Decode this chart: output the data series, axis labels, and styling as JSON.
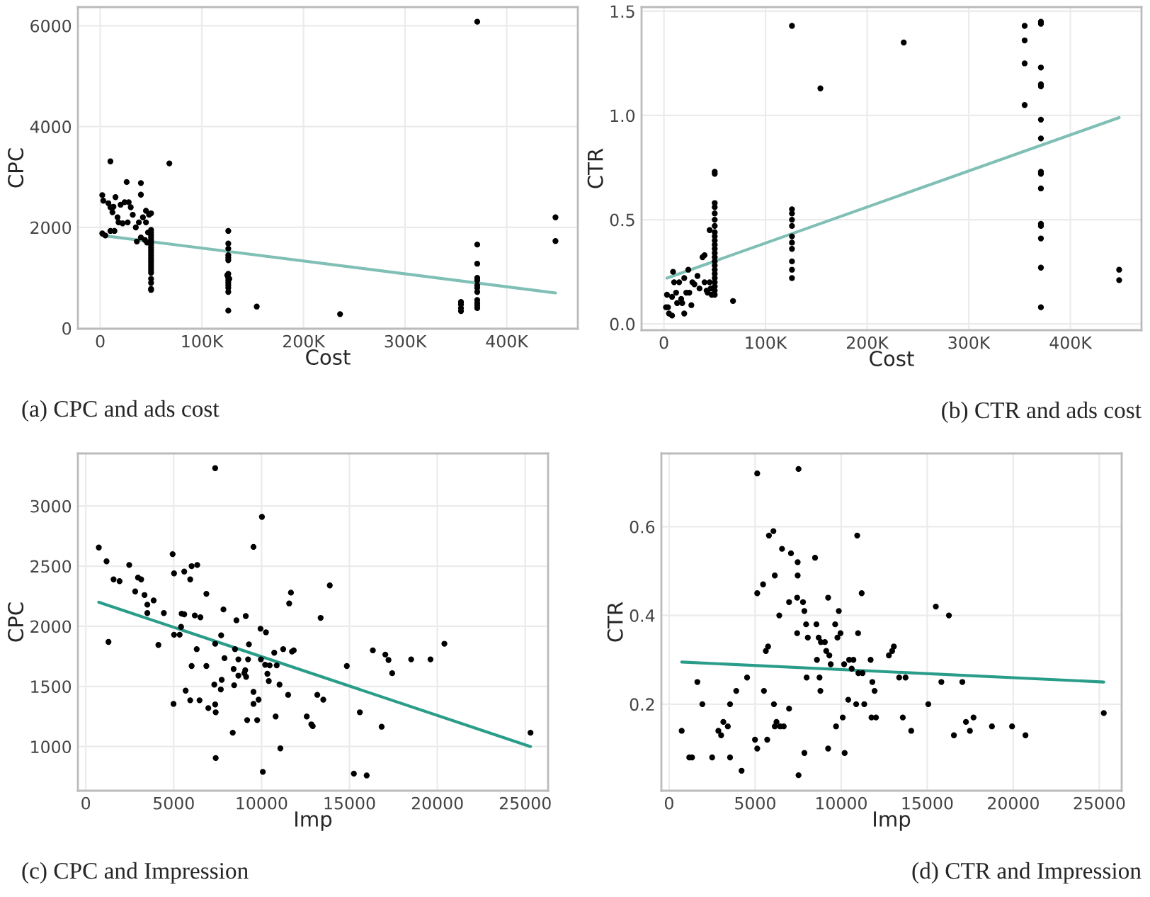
{
  "chart_data": [
    {
      "type": "scatter",
      "xlabel": "Cost",
      "ylabel": "CPC",
      "annotations": [
        "(a) CPC and ads cost"
      ],
      "grid": true,
      "xlim": [
        -22000,
        470000
      ],
      "ylim": [
        -10,
        6370
      ],
      "xticks": [
        0,
        {
          "value": 100000,
          "label": "100K"
        },
        {
          "value": 200000,
          "label": "200K"
        },
        {
          "value": 300000,
          "label": "300K"
        },
        {
          "value": 400000,
          "label": "400K"
        }
      ],
      "yticks": [
        0,
        2000,
        4000,
        6000
      ],
      "series": [
        {
          "type": "scatter",
          "marker": "circle",
          "color": "#000000",
          "x": [
            2000,
            3000,
            2000,
            5000,
            8000,
            10000,
            10000,
            12000,
            13000,
            15000,
            17000,
            18000,
            20000,
            22000,
            24000,
            26000,
            27000,
            28000,
            30000,
            32000,
            35000,
            38000,
            40000,
            40000,
            42000,
            45000,
            45000,
            47000,
            48000,
            50000,
            10000,
            14000,
            36000,
            40000,
            44000,
            46000,
            50000,
            50000,
            50000,
            50000,
            50000,
            50000,
            50000,
            50000,
            50000,
            50000,
            50000,
            50000,
            50000,
            50000,
            50000,
            50000,
            50000,
            50000,
            50000,
            50000,
            50000,
            50000,
            68000,
            126000,
            126000,
            126000,
            126000,
            126000,
            126000,
            126000,
            126000,
            126000,
            126000,
            126000,
            126000,
            126000,
            126000,
            127000,
            125000,
            154000,
            236000,
            355000,
            355000,
            355000,
            355000,
            371000,
            371000,
            371000,
            371000,
            371000,
            371000,
            371000,
            371000,
            371000,
            371000,
            371000,
            371000,
            448000,
            448000
          ],
          "values": [
            2640,
            2530,
            1880,
            1840,
            2480,
            3310,
            2400,
            2300,
            2410,
            2600,
            2200,
            2100,
            2450,
            2080,
            2500,
            2900,
            2100,
            2500,
            2400,
            2250,
            2000,
            2100,
            2880,
            2650,
            2200,
            2100,
            2330,
            1900,
            2250,
            2280,
            1930,
            1930,
            1720,
            1800,
            1750,
            1700,
            1950,
            1900,
            1850,
            1800,
            1750,
            1700,
            1650,
            1600,
            1550,
            1500,
            1450,
            1400,
            1350,
            1300,
            1250,
            1200,
            1150,
            1100,
            980,
            900,
            780,
            760,
            3270,
            1930,
            1680,
            1580,
            1450,
            1400,
            1350,
            1080,
            1000,
            950,
            900,
            850,
            800,
            720,
            350,
            980,
            1050,
            430,
            280,
            520,
            470,
            400,
            340,
            6080,
            1660,
            1280,
            1000,
            950,
            850,
            800,
            720,
            560,
            500,
            450,
            400,
            2200,
            1730
          ]
        },
        {
          "type": "line",
          "color": "#7fbfb5",
          "x": [
            2000,
            448000
          ],
          "values": [
            1840,
            700
          ]
        }
      ]
    },
    {
      "type": "scatter",
      "xlabel": "Cost",
      "ylabel": "CTR",
      "annotations": [
        "(b) CTR and ads cost"
      ],
      "grid": true,
      "xlim": [
        -22000,
        470000
      ],
      "ylim": [
        -0.03,
        1.52
      ],
      "xticks": [
        0,
        {
          "value": 100000,
          "label": "100K"
        },
        {
          "value": 200000,
          "label": "200K"
        },
        {
          "value": 300000,
          "label": "300K"
        },
        {
          "value": 400000,
          "label": "400K"
        }
      ],
      "yticks": [
        {
          "value": 0,
          "label": "0.0"
        },
        0.5,
        {
          "value": 1,
          "label": "1.0"
        },
        1.5
      ],
      "series": [
        {
          "type": "scatter",
          "marker": "circle",
          "color": "#000000",
          "x": [
            2000,
            3000,
            4000,
            5000,
            8000,
            8000,
            9000,
            10000,
            12000,
            13000,
            15000,
            17000,
            18000,
            20000,
            20000,
            22000,
            24000,
            25000,
            27000,
            28000,
            30000,
            33000,
            35000,
            38000,
            40000,
            40000,
            42000,
            43000,
            45000,
            45000,
            46000,
            47000,
            50000,
            50000,
            50000,
            50000,
            50000,
            50000,
            50000,
            50000,
            50000,
            50000,
            50000,
            50000,
            50000,
            50000,
            50000,
            50000,
            50000,
            50000,
            50000,
            50000,
            50000,
            50000,
            50000,
            68000,
            126000,
            126000,
            126000,
            126000,
            126000,
            126000,
            126000,
            126000,
            126000,
            126000,
            126000,
            154000,
            236000,
            355000,
            355000,
            355000,
            355000,
            371000,
            371000,
            371000,
            371000,
            371000,
            371000,
            371000,
            371000,
            371000,
            371000,
            371000,
            371000,
            371000,
            371000,
            371000,
            448000,
            448000
          ],
          "values": [
            0.08,
            0.14,
            0.08,
            0.05,
            0.04,
            0.13,
            0.25,
            0.2,
            0.15,
            0.1,
            0.2,
            0.12,
            0.1,
            0.05,
            0.22,
            0.15,
            0.26,
            0.15,
            0.09,
            0.2,
            0.19,
            0.23,
            0.17,
            0.32,
            0.33,
            0.2,
            0.16,
            0.15,
            0.45,
            0.2,
            0.17,
            0.14,
            0.73,
            0.72,
            0.58,
            0.56,
            0.53,
            0.5,
            0.47,
            0.44,
            0.42,
            0.4,
            0.38,
            0.36,
            0.34,
            0.32,
            0.3,
            0.28,
            0.26,
            0.24,
            0.22,
            0.2,
            0.18,
            0.16,
            0.14,
            0.11,
            1.43,
            0.55,
            0.53,
            0.5,
            0.47,
            0.42,
            0.39,
            0.36,
            0.3,
            0.26,
            0.22,
            1.13,
            1.35,
            1.43,
            1.36,
            1.25,
            1.05,
            1.45,
            1.44,
            1.23,
            1.15,
            1.14,
            0.98,
            0.89,
            0.73,
            0.72,
            0.65,
            0.48,
            0.47,
            0.41,
            0.27,
            0.08,
            0.26,
            0.21
          ]
        },
        {
          "type": "line",
          "color": "#7fbfb5",
          "x": [
            3000,
            448000
          ],
          "values": [
            0.22,
            0.99
          ]
        }
      ]
    },
    {
      "type": "scatter",
      "xlabel": "Imp",
      "ylabel": "CPC",
      "annotations": [
        "(c) CPC and Impression"
      ],
      "grid": true,
      "xlim": [
        -450,
        26300
      ],
      "ylim": [
        633,
        3437
      ],
      "xticks": [
        0,
        5000,
        10000,
        15000,
        20000,
        25000
      ],
      "yticks": [
        1000,
        1500,
        2000,
        2500,
        3000
      ],
      "series": [
        {
          "type": "scatter",
          "marker": "circle",
          "color": "#000000",
          "x": [
            740,
            1180,
            1290,
            1580,
            1920,
            2470,
            2810,
            2970,
            3150,
            3340,
            3500,
            3500,
            3860,
            4130,
            4440,
            4940,
            5020,
            5020,
            4990,
            5340,
            5420,
            5450,
            5600,
            5600,
            5680,
            5940,
            5940,
            6020,
            6020,
            6200,
            6340,
            6310,
            6470,
            6520,
            6860,
            6860,
            6970,
            7310,
            7360,
            7360,
            7360,
            7390,
            7390,
            7680,
            7700,
            7730,
            7830,
            7890,
            8440,
            8410,
            8490,
            8360,
            8570,
            8680,
            8680,
            9020,
            9070,
            9100,
            9120,
            9180,
            9230,
            9280,
            9540,
            9540,
            9540,
            9750,
            9830,
            9940,
            10020,
            9960,
            10070,
            10200,
            10250,
            10330,
            10410,
            10460,
            10720,
            10800,
            10860,
            11020,
            11070,
            11230,
            11510,
            11570,
            11670,
            11730,
            11830,
            12570,
            12830,
            12910,
            13170,
            13360,
            13510,
            13880,
            14850,
            15590,
            15250,
            16330,
            15980,
            16830,
            17040,
            17220,
            17430,
            18510,
            19610,
            20400,
            25300
          ],
          "values": [
            2655,
            2540,
            1870,
            2390,
            2375,
            2510,
            2290,
            2405,
            2390,
            2260,
            2180,
            2110,
            2215,
            1845,
            2110,
            2600,
            2440,
            1930,
            1355,
            1930,
            1995,
            2105,
            2455,
            2100,
            1465,
            1385,
            2390,
            2500,
            1670,
            2090,
            2510,
            1810,
            1385,
            2075,
            2270,
            1670,
            1320,
            1515,
            3315,
            1855,
            1350,
            1285,
            905,
            1475,
            1925,
            1555,
            2140,
            1735,
            1510,
            1645,
            1810,
            1115,
            2050,
            1590,
            1725,
            1610,
            1635,
            2085,
            1580,
            1220,
            1725,
            1850,
            2660,
            1455,
            1355,
            1220,
            1390,
            1980,
            2910,
            1725,
            790,
            1680,
            1950,
            1605,
            1545,
            1675,
            1780,
            1250,
            1675,
            1515,
            985,
            1810,
            1430,
            2190,
            2280,
            1790,
            1800,
            1250,
            1185,
            1170,
            1430,
            2070,
            1390,
            2340,
            1670,
            1285,
            775,
            1800,
            760,
            1165,
            1765,
            1720,
            1610,
            1725,
            1725,
            1855,
            1115
          ]
        },
        {
          "type": "line",
          "color": "#2a9d8a",
          "x": [
            740,
            25300
          ],
          "values": [
            2200,
            1000
          ]
        }
      ]
    },
    {
      "type": "scatter",
      "xlabel": "Imp",
      "ylabel": "CTR",
      "annotations": [
        "(d) CTR and Impression"
      ],
      "grid": true,
      "xlim": [
        -450,
        26300
      ],
      "ylim": [
        0.005,
        0.765
      ],
      "xticks": [
        0,
        5000,
        10000,
        15000,
        20000,
        25000
      ],
      "yticks": [
        0.2,
        0.4,
        0.6
      ],
      "series": [
        {
          "type": "scatter",
          "marker": "circle",
          "color": "#000000",
          "x": [
            730,
            1170,
            1330,
            1640,
            1930,
            2500,
            2860,
            3020,
            3150,
            3410,
            3540,
            3540,
            3900,
            4210,
            4530,
            4990,
            5120,
            5120,
            5120,
            5460,
            5510,
            5620,
            5750,
            5700,
            5800,
            6060,
            6090,
            6140,
            6140,
            6240,
            6400,
            6450,
            6660,
            6560,
            6970,
            6970,
            7080,
            7470,
            7470,
            7440,
            7440,
            7520,
            7520,
            7780,
            7860,
            7860,
            7960,
            7990,
            8060,
            8480,
            8560,
            8590,
            8690,
            8740,
            8790,
            8820,
            9050,
            9130,
            9240,
            9240,
            9310,
            9390,
            9650,
            9700,
            9780,
            9860,
            9960,
            10090,
            10170,
            10200,
            10410,
            10460,
            10610,
            10710,
            10870,
            10930,
            10980,
            11000,
            11190,
            11240,
            11340,
            11710,
            11760,
            11810,
            11940,
            12020,
            12770,
            12960,
            13060,
            13370,
            13580,
            13740,
            14070,
            15060,
            15500,
            15820,
            16260,
            16550,
            17040,
            17250,
            17480,
            17690,
            18760,
            19930,
            20710,
            25260
          ],
          "values": [
            0.14,
            0.08,
            0.08,
            0.25,
            0.2,
            0.08,
            0.14,
            0.13,
            0.16,
            0.15,
            0.2,
            0.08,
            0.23,
            0.05,
            0.26,
            0.12,
            0.1,
            0.72,
            0.45,
            0.47,
            0.23,
            0.32,
            0.33,
            0.12,
            0.58,
            0.59,
            0.2,
            0.15,
            0.49,
            0.16,
            0.4,
            0.15,
            0.15,
            0.55,
            0.43,
            0.19,
            0.54,
            0.52,
            0.49,
            0.44,
            0.36,
            0.73,
            0.04,
            0.43,
            0.41,
            0.09,
            0.38,
            0.26,
            0.35,
            0.53,
            0.38,
            0.3,
            0.35,
            0.26,
            0.23,
            0.34,
            0.34,
            0.32,
            0.44,
            0.1,
            0.31,
            0.29,
            0.38,
            0.15,
            0.35,
            0.41,
            0.36,
            0.17,
            0.29,
            0.09,
            0.21,
            0.3,
            0.28,
            0.3,
            0.2,
            0.58,
            0.36,
            0.27,
            0.45,
            0.27,
            0.2,
            0.3,
            0.17,
            0.25,
            0.23,
            0.17,
            0.31,
            0.32,
            0.33,
            0.26,
            0.17,
            0.26,
            0.14,
            0.2,
            0.42,
            0.25,
            0.4,
            0.13,
            0.25,
            0.16,
            0.14,
            0.17,
            0.15,
            0.15,
            0.13,
            0.18
          ]
        },
        {
          "type": "line",
          "color": "#2a9d8a",
          "x": [
            730,
            25260
          ],
          "values": [
            0.295,
            0.25
          ]
        }
      ]
    }
  ]
}
